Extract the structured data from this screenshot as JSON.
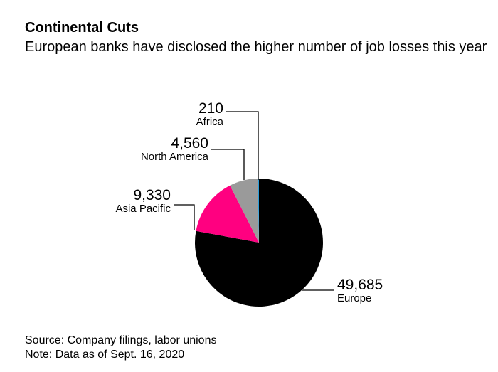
{
  "header": {
    "title": "Continental Cuts",
    "subtitle": "European banks have disclosed the higher number of job losses this year"
  },
  "footer": {
    "source": "Source: Company filings, labor unions",
    "note": "Note: Data as of Sept. 16, 2020"
  },
  "chart_data": {
    "type": "pie",
    "title": "Continental Cuts",
    "subtitle": "European banks have disclosed the higher number of job losses this year",
    "slices": [
      {
        "label": "Europe",
        "value": 49685,
        "value_label": "49,685",
        "color": "#000000"
      },
      {
        "label": "Asia Pacific",
        "value": 9330,
        "value_label": "9,330",
        "color": "#ff0080"
      },
      {
        "label": "North America",
        "value": 4560,
        "value_label": "4,560",
        "color": "#9a9a9a"
      },
      {
        "label": "Africa",
        "value": 210,
        "value_label": "210",
        "color": "#2a9bd8"
      }
    ],
    "start": "12 o'clock",
    "direction": "clockwise",
    "legend": "none"
  }
}
